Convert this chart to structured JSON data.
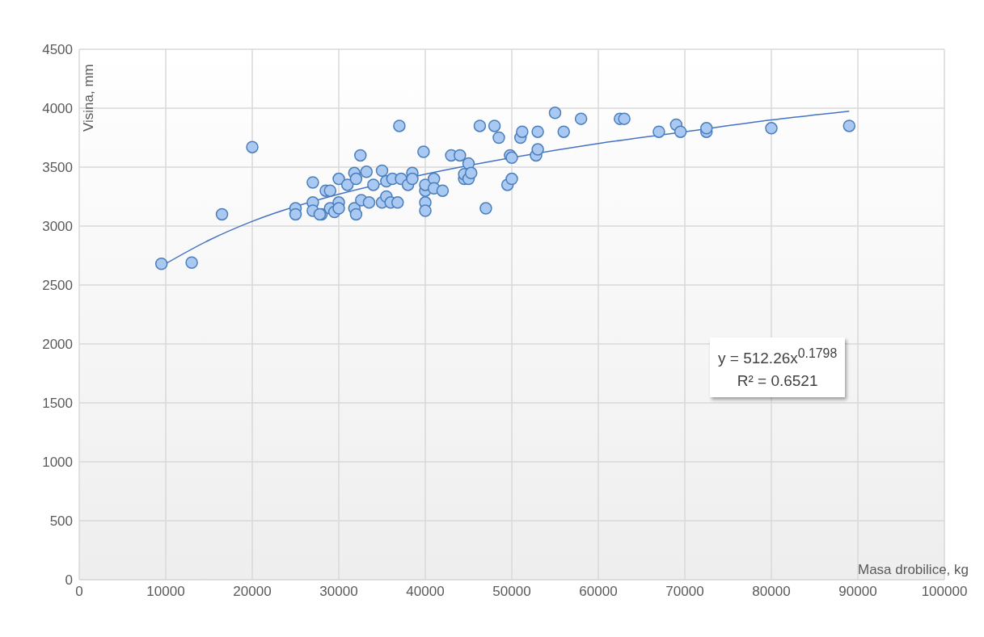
{
  "chart_data": {
    "type": "scatter",
    "xlabel": "Masa drobilice, kg",
    "ylabel": "Visina, mm",
    "annotations": [
      "y = 512.26x$^{0.1798}$",
      "R² = 0.6521"
    ],
    "xlim": [
      0,
      100000
    ],
    "xticks": [
      0,
      10000,
      20000,
      30000,
      40000,
      50000,
      60000,
      70000,
      80000,
      90000,
      100000
    ],
    "ylim": [
      0,
      4500
    ],
    "yticks": [
      0,
      500,
      1000,
      1500,
      2000,
      2500,
      3000,
      3500,
      4000,
      4500
    ],
    "grid": true,
    "legend": false,
    "series": [
      {
        "marker": "circle",
        "color": "#a9c9f2",
        "x": [
          9500,
          13000,
          16500,
          20000,
          25000,
          25000,
          27000,
          27000,
          27000,
          28000,
          27800,
          28500,
          29000,
          29000,
          29500,
          30000,
          30000,
          30000,
          31000,
          31800,
          32000,
          31800,
          32000,
          32500,
          32600,
          33200,
          33500,
          34000,
          35000,
          35000,
          35500,
          35500,
          36000,
          36200,
          36800,
          37000,
          37200,
          38000,
          38500,
          38500,
          39800,
          40000,
          40000,
          40000,
          40000,
          41000,
          41000,
          42000,
          43000,
          44000,
          44500,
          44500,
          45000,
          45000,
          45300,
          46300,
          47000,
          48000,
          48500,
          49500,
          49800,
          50000,
          50000,
          51000,
          51200,
          52800,
          53000,
          53000,
          55000,
          56000,
          58000,
          62500,
          63000,
          67000,
          69000,
          69500,
          72500,
          72500,
          80000,
          89000
        ],
        "values": [
          2680,
          2690,
          3100,
          3670,
          3150,
          3100,
          3370,
          3200,
          3130,
          3100,
          3100,
          3300,
          3300,
          3150,
          3120,
          3400,
          3200,
          3150,
          3350,
          3450,
          3400,
          3150,
          3100,
          3600,
          3220,
          3460,
          3200,
          3350,
          3470,
          3200,
          3380,
          3250,
          3200,
          3400,
          3200,
          3850,
          3400,
          3350,
          3450,
          3400,
          3630,
          3300,
          3350,
          3200,
          3130,
          3400,
          3320,
          3300,
          3600,
          3600,
          3400,
          3440,
          3530,
          3400,
          3450,
          3850,
          3150,
          3850,
          3750,
          3350,
          3600,
          3400,
          3580,
          3750,
          3800,
          3600,
          3800,
          3650,
          3960,
          3800,
          3910,
          3910,
          3910,
          3800,
          3860,
          3800,
          3800,
          3830,
          3830,
          3850
        ]
      },
      {
        "type": "line",
        "color": "#4472c4",
        "x": [
          9500,
          15000,
          20000,
          30000,
          40000,
          50000,
          60000,
          70000,
          80000,
          89000
        ],
        "values": [
          2660,
          2880,
          3040,
          3270,
          3440,
          3580,
          3700,
          3800,
          3900,
          3975
        ]
      }
    ]
  }
}
